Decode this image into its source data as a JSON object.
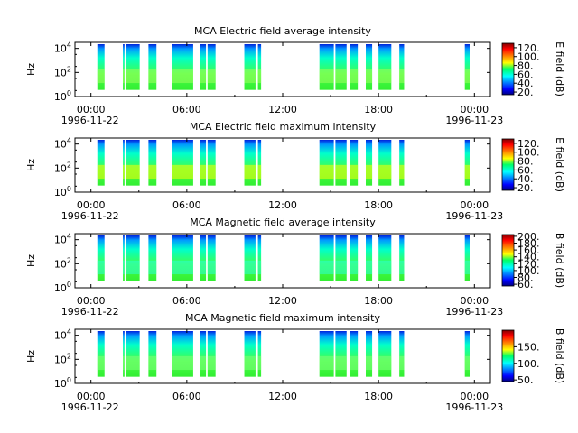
{
  "chart_data": [
    {
      "type": "heatmap",
      "title": "MCA  Electric field average intensity",
      "ylabel": "Hz",
      "colorbar_label": "E field (dB)",
      "colorbar_ticks": [
        "20.",
        "40.",
        "60.",
        "80.",
        "100.",
        "120."
      ],
      "colorbar_range": [
        14,
        130
      ],
      "y_ticks": [
        {
          "base": "10",
          "exp": "0"
        },
        {
          "base": "10",
          "exp": "2"
        },
        {
          "base": "10",
          "exp": "4"
        }
      ],
      "y_range_log10": [
        0,
        4.5
      ],
      "x_ticks": [
        "00:00",
        "06:00",
        "12:00",
        "18:00",
        "00:00"
      ],
      "x_start_date": "1996-11-22",
      "x_end_date": "1996-11-23",
      "x_range_hours": [
        -1,
        25
      ],
      "data_blocks_hours": [
        [
          0.4,
          0.85
        ],
        [
          2.0,
          2.1
        ],
        [
          2.2,
          3.05
        ],
        [
          3.6,
          4.1
        ],
        [
          5.1,
          6.4
        ],
        [
          6.8,
          7.2
        ],
        [
          7.3,
          7.8
        ],
        [
          9.6,
          10.3
        ],
        [
          10.45,
          10.65
        ],
        [
          14.3,
          15.2
        ],
        [
          15.3,
          16.0
        ],
        [
          16.2,
          16.7
        ],
        [
          17.2,
          17.6
        ],
        [
          18.0,
          18.8
        ],
        [
          19.3,
          19.6
        ],
        [
          23.4,
          23.7
        ]
      ],
      "intensity_level_dB": 70
    },
    {
      "type": "heatmap",
      "title": "MCA  Electric field maximum intensity",
      "ylabel": "Hz",
      "colorbar_label": "E field (dB)",
      "colorbar_ticks": [
        "20.",
        "40.",
        "60.",
        "80.",
        "100.",
        "120."
      ],
      "colorbar_range": [
        14,
        130
      ],
      "y_ticks": [
        {
          "base": "10",
          "exp": "0"
        },
        {
          "base": "10",
          "exp": "2"
        },
        {
          "base": "10",
          "exp": "4"
        }
      ],
      "y_range_log10": [
        0,
        4.5
      ],
      "x_ticks": [
        "00:00",
        "06:00",
        "12:00",
        "18:00",
        "00:00"
      ],
      "x_start_date": "1996-11-22",
      "x_end_date": "1996-11-23",
      "x_range_hours": [
        -1,
        25
      ],
      "data_blocks_hours": [
        [
          0.4,
          0.85
        ],
        [
          2.0,
          2.1
        ],
        [
          2.2,
          3.05
        ],
        [
          3.6,
          4.1
        ],
        [
          5.1,
          6.4
        ],
        [
          6.8,
          7.2
        ],
        [
          7.3,
          7.8
        ],
        [
          9.6,
          10.3
        ],
        [
          10.45,
          10.65
        ],
        [
          14.3,
          15.2
        ],
        [
          15.3,
          16.0
        ],
        [
          16.2,
          16.7
        ],
        [
          17.2,
          17.6
        ],
        [
          18.0,
          18.8
        ],
        [
          19.3,
          19.6
        ],
        [
          23.4,
          23.7
        ]
      ],
      "intensity_level_dB": 80
    },
    {
      "type": "heatmap",
      "title": "MCA  Magnetic field average intensity",
      "ylabel": "Hz",
      "colorbar_label": "B field (dB)",
      "colorbar_ticks": [
        "60.",
        "80.",
        "100.",
        "120.",
        "140.",
        "160.",
        "180.",
        "200."
      ],
      "colorbar_range": [
        55,
        205
      ],
      "y_ticks": [
        {
          "base": "10",
          "exp": "0"
        },
        {
          "base": "10",
          "exp": "2"
        },
        {
          "base": "10",
          "exp": "4"
        }
      ],
      "y_range_log10": [
        0,
        4.5
      ],
      "x_ticks": [
        "00:00",
        "06:00",
        "12:00",
        "18:00",
        "00:00"
      ],
      "x_start_date": "1996-11-22",
      "x_end_date": "1996-11-23",
      "x_range_hours": [
        -1,
        25
      ],
      "data_blocks_hours": [
        [
          0.4,
          0.85
        ],
        [
          2.0,
          2.1
        ],
        [
          2.2,
          3.05
        ],
        [
          3.6,
          4.1
        ],
        [
          5.1,
          6.4
        ],
        [
          6.8,
          7.2
        ],
        [
          7.3,
          7.8
        ],
        [
          9.6,
          10.3
        ],
        [
          10.45,
          10.65
        ],
        [
          14.3,
          15.2
        ],
        [
          15.3,
          16.0
        ],
        [
          16.2,
          16.7
        ],
        [
          17.2,
          17.6
        ],
        [
          18.0,
          18.8
        ],
        [
          19.3,
          19.6
        ],
        [
          23.4,
          23.7
        ]
      ],
      "intensity_level_dB": 110
    },
    {
      "type": "heatmap",
      "title": "MCA  Magnetic field maximum intensity",
      "ylabel": "Hz",
      "colorbar_label": "B field (dB)",
      "colorbar_ticks": [
        "50.",
        "100.",
        "150."
      ],
      "colorbar_range": [
        45,
        200
      ],
      "y_ticks": [
        {
          "base": "10",
          "exp": "0"
        },
        {
          "base": "10",
          "exp": "2"
        },
        {
          "base": "10",
          "exp": "4"
        }
      ],
      "y_range_log10": [
        0,
        4.5
      ],
      "x_ticks": [
        "00:00",
        "06:00",
        "12:00",
        "18:00",
        "00:00"
      ],
      "x_start_date": "1996-11-22",
      "x_end_date": "1996-11-23",
      "x_range_hours": [
        -1,
        25
      ],
      "data_blocks_hours": [
        [
          0.4,
          0.85
        ],
        [
          2.0,
          2.1
        ],
        [
          2.2,
          3.05
        ],
        [
          3.6,
          4.1
        ],
        [
          5.1,
          6.4
        ],
        [
          6.8,
          7.2
        ],
        [
          7.3,
          7.8
        ],
        [
          9.6,
          10.3
        ],
        [
          10.45,
          10.65
        ],
        [
          14.3,
          15.2
        ],
        [
          15.3,
          16.0
        ],
        [
          16.2,
          16.7
        ],
        [
          17.2,
          17.6
        ],
        [
          18.0,
          18.8
        ],
        [
          19.3,
          19.6
        ],
        [
          23.4,
          23.7
        ]
      ],
      "intensity_level_dB": 115
    }
  ]
}
